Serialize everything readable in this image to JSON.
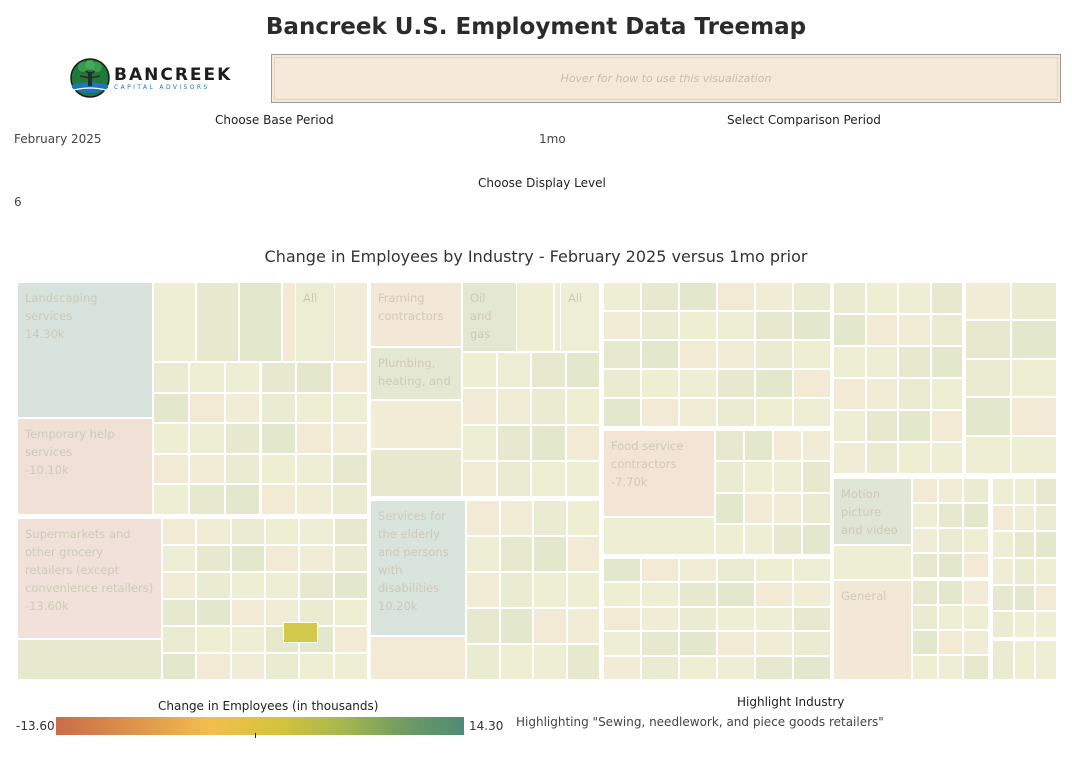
{
  "title": "Bancreek U.S. Employment Data Treemap",
  "logo": {
    "brand": "BANCREEK",
    "tagline": "CAPITAL ADVISORS",
    "icon": "tree-logo-icon"
  },
  "howto": {
    "text": "Hover for how to use this visualization"
  },
  "controls": {
    "base_period_label": "Choose Base Period",
    "base_period_value": "February 2025",
    "comparison_label": "Select Comparison Period",
    "comparison_value": "1mo",
    "display_level_label": "Choose Display Level",
    "display_level_value": "6"
  },
  "chart_title": "Change in Employees by Industry - February 2025 versus 1mo prior",
  "chart_data": {
    "type": "treemap",
    "value_unit": "thousands of employees",
    "labeled_cells": [
      {
        "name": "Landscaping services",
        "label_lines": [
          "Landscaping",
          "services",
          "14.30k"
        ],
        "value": 14.3
      },
      {
        "name": "Temporary help services",
        "label_lines": [
          "Temporary help",
          "services",
          "-10.10k"
        ],
        "value": -10.1
      },
      {
        "name": "Supermarkets and other grocery retailers (except convenience retailers)",
        "label_lines": [
          "Supermarkets and",
          "other grocery",
          "retailers (except",
          "convenience retailers)",
          "-13.60k"
        ],
        "value": -13.6
      },
      {
        "name": "Framing contractors",
        "label_lines": [
          "Framing",
          "contractors"
        ]
      },
      {
        "name": "Oil and gas",
        "label_lines": [
          "Oil and",
          "gas"
        ]
      },
      {
        "name": "All",
        "label_lines": [
          "All"
        ]
      },
      {
        "name": "All",
        "label_lines": [
          "All"
        ]
      },
      {
        "name": "Plumbing, heating, and",
        "label_lines": [
          "Plumbing,",
          "heating, and"
        ]
      },
      {
        "name": "Services for the elderly and persons with disabilities",
        "label_lines": [
          "Services for",
          "the elderly",
          "and persons",
          "with",
          "disabilities",
          "10.20k"
        ],
        "value": 10.2
      },
      {
        "name": "Food service contractors",
        "label_lines": [
          "Food service",
          "contractors",
          "-7.70k"
        ],
        "value": -7.7
      },
      {
        "name": "Motion picture and video",
        "label_lines": [
          "Motion",
          "picture",
          "and video"
        ]
      },
      {
        "name": "General",
        "label_lines": [
          "General"
        ]
      }
    ],
    "highlighted": "Sewing, needlework, and piece goods retailers"
  },
  "legend": {
    "title": "Change in Employees (in thousands)",
    "min": "-13.60",
    "max": "14.30",
    "colors": [
      "#c96c49",
      "#f2bf4d",
      "#d4c33c",
      "#4e8b76"
    ]
  },
  "highlight": {
    "title": "Highlight Industry",
    "value": "Highlighting \"Sewing, needlework, and piece goods retailers\""
  }
}
